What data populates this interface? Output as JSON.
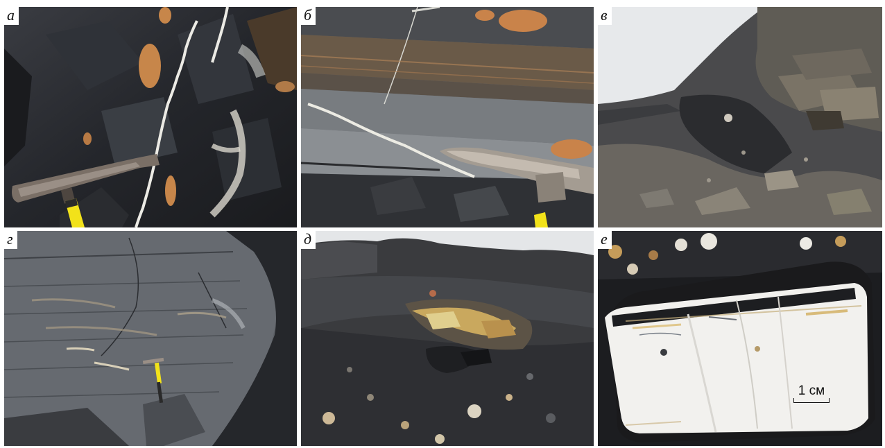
{
  "figure": {
    "panels": [
      {
        "label": "а",
        "subject": "black shale with quartz veinlets and rock hammer"
      },
      {
        "label": "б",
        "subject": "dipping grey shale beds with hammer head"
      },
      {
        "label": "в",
        "subject": "scree slope with bedded outcrop under overcast sky"
      },
      {
        "label": "г",
        "subject": "large grey shale outcrop with small yellow-handled hammer"
      },
      {
        "label": "д",
        "subject": "talus slope of dark shale with ochre patch"
      },
      {
        "label": "е",
        "subject": "white quartz block in black shale with scale bar"
      }
    ],
    "scale_bar": {
      "text": "1 см"
    },
    "colors": {
      "shale_dark": "#2b2d31",
      "shale_grey": "#6f7378",
      "ochre": "#c7864a",
      "quartz_white": "#f2f1ee",
      "hammer_handle": "#f2e21a",
      "sky": "#e8eaec"
    }
  }
}
